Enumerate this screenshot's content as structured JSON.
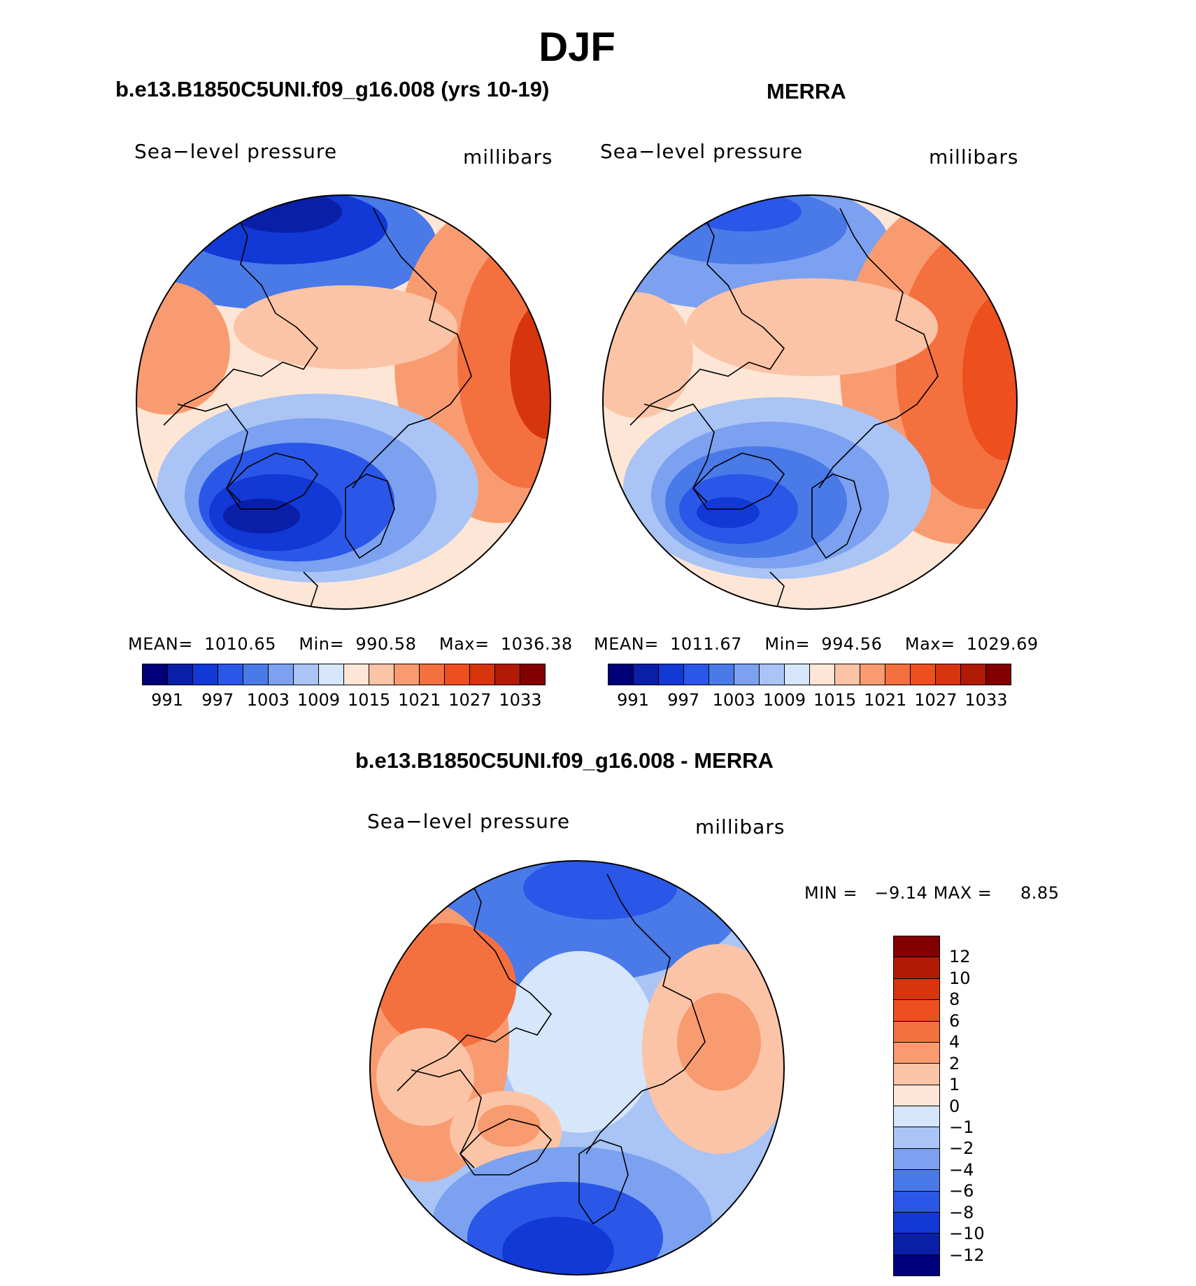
{
  "title": "DJF",
  "panels": {
    "model": {
      "title": "b.e13.B1850C5UNI.f09_g16.008 (yrs 10-19)",
      "variable": "Sea−level pressure",
      "units": "millibars",
      "stats": {
        "mean_label": "MEAN=",
        "mean": "1010.65",
        "min_label": "Min=",
        "min": "990.58",
        "max_label": "Max=",
        "max": "1036.38"
      }
    },
    "obs": {
      "title": "MERRA",
      "variable": "Sea−level pressure",
      "units": "millibars",
      "stats": {
        "mean_label": "MEAN=",
        "mean": "1011.67",
        "min_label": "Min=",
        "min": "994.56",
        "max_label": "Max=",
        "max": "1029.69"
      }
    },
    "diff": {
      "title": "b.e13.B1850C5UNI.f09_g16.008 - MERRA",
      "variable": "Sea−level pressure",
      "units": "millibars",
      "stats": {
        "min_label": "MIN =",
        "min": "−9.14",
        "max_label": "MAX =",
        "max": "8.85"
      }
    }
  },
  "abs_colorbar": {
    "colors": [
      "#00007a",
      "#0a1fa8",
      "#1238d6",
      "#2a57e8",
      "#4a7ae8",
      "#7ba1f0",
      "#a9c4f5",
      "#d6e6fb",
      "#fde6d6",
      "#fcc4a6",
      "#f99b70",
      "#f4703f",
      "#ee4f1f",
      "#d7350d",
      "#b11b06",
      "#820000"
    ],
    "ticks": [
      "991",
      "997",
      "1003",
      "1009",
      "1015",
      "1021",
      "1027",
      "1033"
    ]
  },
  "diff_colorbar": {
    "colors": [
      "#820000",
      "#b11b06",
      "#d7350d",
      "#ee4f1f",
      "#f4703f",
      "#f99b70",
      "#fcc4a6",
      "#fde6d6",
      "#d6e6fb",
      "#a9c4f5",
      "#7ba1f0",
      "#4a7ae8",
      "#2a57e8",
      "#1238d6",
      "#0a1fa8",
      "#00007a"
    ],
    "ticks": [
      "12",
      "10",
      "8",
      "6",
      "4",
      "2",
      "1",
      "0",
      "−1",
      "−2",
      "−4",
      "−6",
      "−8",
      "−10",
      "−12"
    ]
  }
}
